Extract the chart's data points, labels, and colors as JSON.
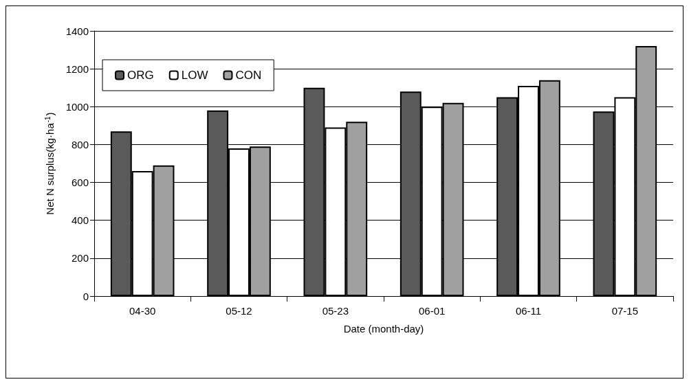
{
  "chart_data": {
    "type": "bar",
    "xlabel": "Date (month-day)",
    "ylabel": "Net N surplus(kg·ha$^{-1}$)",
    "categories": [
      "04-30",
      "05-12",
      "05-23",
      "06-01",
      "06-11",
      "07-15"
    ],
    "series": [
      {
        "name": "ORG",
        "color": "#5a5a5a",
        "values": [
          870,
          980,
          1100,
          1080,
          1050,
          975
        ]
      },
      {
        "name": "LOW",
        "color": "#ffffff",
        "values": [
          660,
          780,
          890,
          1000,
          1110,
          1050
        ]
      },
      {
        "name": "CON",
        "color": "#a0a0a0",
        "values": [
          690,
          790,
          920,
          1020,
          1140,
          1320
        ]
      }
    ],
    "ylim": [
      0,
      1400
    ],
    "yticks": [
      0,
      200,
      400,
      600,
      800,
      1000,
      1200,
      1400
    ],
    "grid": "y",
    "legend": "top left"
  }
}
